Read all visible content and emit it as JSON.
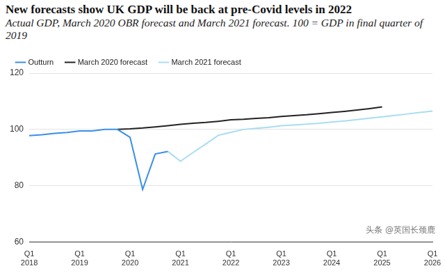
{
  "chart_data": {
    "type": "line",
    "title": "New forecasts show UK GDP will be back at pre-Covid levels in 2022",
    "subtitle": "Actual GDP, March 2020 OBR forecast and March 2021 forecast. 100 = GDP in final quarter of 2019",
    "annotation": "头条 @英国长颈鹿",
    "categories": [
      "Q1 2018",
      null,
      null,
      null,
      "Q1 2019",
      null,
      null,
      null,
      "Q1 2020",
      null,
      null,
      null,
      "Q1 2021",
      null,
      null,
      null,
      "Q1 2022",
      null,
      null,
      null,
      "Q1 2023",
      null,
      null,
      null,
      "Q1 2024",
      null,
      null,
      null,
      "Q1 2025",
      null,
      null,
      null,
      "Q1 2026"
    ],
    "series": [
      {
        "name": "Outturn",
        "color": "#3a8ee6",
        "values": [
          97.8,
          98.1,
          98.6,
          98.9,
          99.5,
          99.5,
          100.0,
          100.0,
          97.2,
          78.7,
          91.3,
          92.2,
          null,
          null,
          null,
          null,
          null,
          null,
          null,
          null,
          null,
          null,
          null,
          null,
          null,
          null,
          null,
          null,
          null,
          null,
          null,
          null,
          null
        ]
      },
      {
        "name": "March 2020 forecast",
        "color": "#222222",
        "values": [
          null,
          null,
          null,
          null,
          null,
          null,
          null,
          100.0,
          100.2,
          100.5,
          100.9,
          101.3,
          101.8,
          102.2,
          102.5,
          102.9,
          103.4,
          103.6,
          103.9,
          104.2,
          104.6,
          104.9,
          105.2,
          105.6,
          106.0,
          106.4,
          106.9,
          107.4,
          108.0,
          null,
          null,
          null,
          null
        ]
      },
      {
        "name": "March 2021 forecast",
        "color": "#a8ddf2",
        "values": [
          null,
          null,
          null,
          null,
          null,
          null,
          null,
          null,
          null,
          null,
          null,
          92.2,
          88.7,
          91.8,
          94.8,
          97.9,
          99.0,
          100.0,
          100.4,
          100.8,
          101.3,
          101.6,
          101.9,
          102.2,
          102.6,
          103.0,
          103.5,
          104.0,
          104.5,
          105.0,
          105.5,
          106.0,
          106.5
        ]
      }
    ],
    "ylim": [
      60,
      120
    ],
    "yticks": [
      60,
      80,
      100,
      120
    ],
    "grid": true,
    "legend": "top-left"
  }
}
